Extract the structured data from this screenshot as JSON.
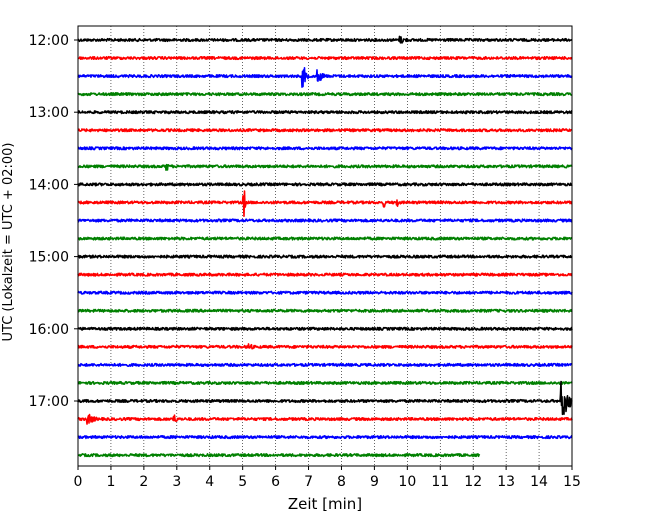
{
  "chart_data": {
    "type": "line",
    "title": "",
    "xlabel": "Zeit  [min]",
    "ylabel": "UTC (Lokalzeit = UTC + 02:00)",
    "xlim": [
      0,
      15
    ],
    "xticks": [
      "0",
      "1",
      "2",
      "3",
      "4",
      "5",
      "6",
      "7",
      "8",
      "9",
      "10",
      "11",
      "12",
      "13",
      "14",
      "15"
    ],
    "yticks": [
      "12:00",
      "13:00",
      "14:00",
      "15:00",
      "16:00",
      "17:00"
    ],
    "grid_x": true,
    "grid_x_style": "dotted",
    "row_interval_minutes": 15,
    "series_colors": [
      "#000000",
      "#ff0000",
      "#0000ff",
      "#008000"
    ],
    "traces": [
      {
        "start": "12:00",
        "end_min": 15,
        "events": [
          {
            "x": 9.8,
            "amp": 0.25,
            "dur": 0.5
          }
        ]
      },
      {
        "start": "12:15",
        "end_min": 15,
        "events": []
      },
      {
        "start": "12:30",
        "end_min": 15,
        "events": [
          {
            "x": 6.85,
            "amp": 0.7,
            "dur": 0.2
          },
          {
            "x": 7.3,
            "amp": 0.4,
            "dur": 0.4
          }
        ]
      },
      {
        "start": "12:45",
        "end_min": 15,
        "events": []
      },
      {
        "start": "13:00",
        "end_min": 15,
        "events": []
      },
      {
        "start": "13:15",
        "end_min": 15,
        "events": []
      },
      {
        "start": "13:30",
        "end_min": 15,
        "events": []
      },
      {
        "start": "13:45",
        "end_min": 15,
        "events": [
          {
            "x": 2.7,
            "amp": 0.35,
            "dur": 0.08
          }
        ]
      },
      {
        "start": "14:00",
        "end_min": 15,
        "events": []
      },
      {
        "start": "14:15",
        "end_min": 15,
        "events": [
          {
            "x": 5.05,
            "amp": 0.9,
            "dur": 0.04
          },
          {
            "x": 9.3,
            "amp": 0.35,
            "dur": 0.04
          },
          {
            "x": 9.7,
            "amp": 0.35,
            "dur": 0.04
          }
        ]
      },
      {
        "start": "14:30",
        "end_min": 15,
        "events": []
      },
      {
        "start": "14:45",
        "end_min": 15,
        "events": []
      },
      {
        "start": "15:00",
        "end_min": 15,
        "events": []
      },
      {
        "start": "15:15",
        "end_min": 15,
        "events": []
      },
      {
        "start": "15:30",
        "end_min": 15,
        "events": []
      },
      {
        "start": "15:45",
        "end_min": 15,
        "events": []
      },
      {
        "start": "16:00",
        "end_min": 15,
        "events": []
      },
      {
        "start": "16:15",
        "end_min": 15,
        "events": [
          {
            "x": 5.2,
            "amp": 0.25,
            "dur": 0.3
          }
        ]
      },
      {
        "start": "16:30",
        "end_min": 15,
        "events": []
      },
      {
        "start": "16:45",
        "end_min": 15,
        "events": []
      },
      {
        "start": "17:00",
        "end_min": 15,
        "events": [
          {
            "x": 14.7,
            "amp": 1.2,
            "dur": 0.5
          }
        ]
      },
      {
        "start": "17:15",
        "end_min": 15,
        "events": [
          {
            "x": 0.3,
            "amp": 0.35,
            "dur": 0.5
          },
          {
            "x": 2.9,
            "amp": 0.35,
            "dur": 0.25
          }
        ]
      },
      {
        "start": "17:30",
        "end_min": 15,
        "events": []
      },
      {
        "start": "17:45",
        "end_min": 12.2,
        "events": []
      }
    ]
  }
}
